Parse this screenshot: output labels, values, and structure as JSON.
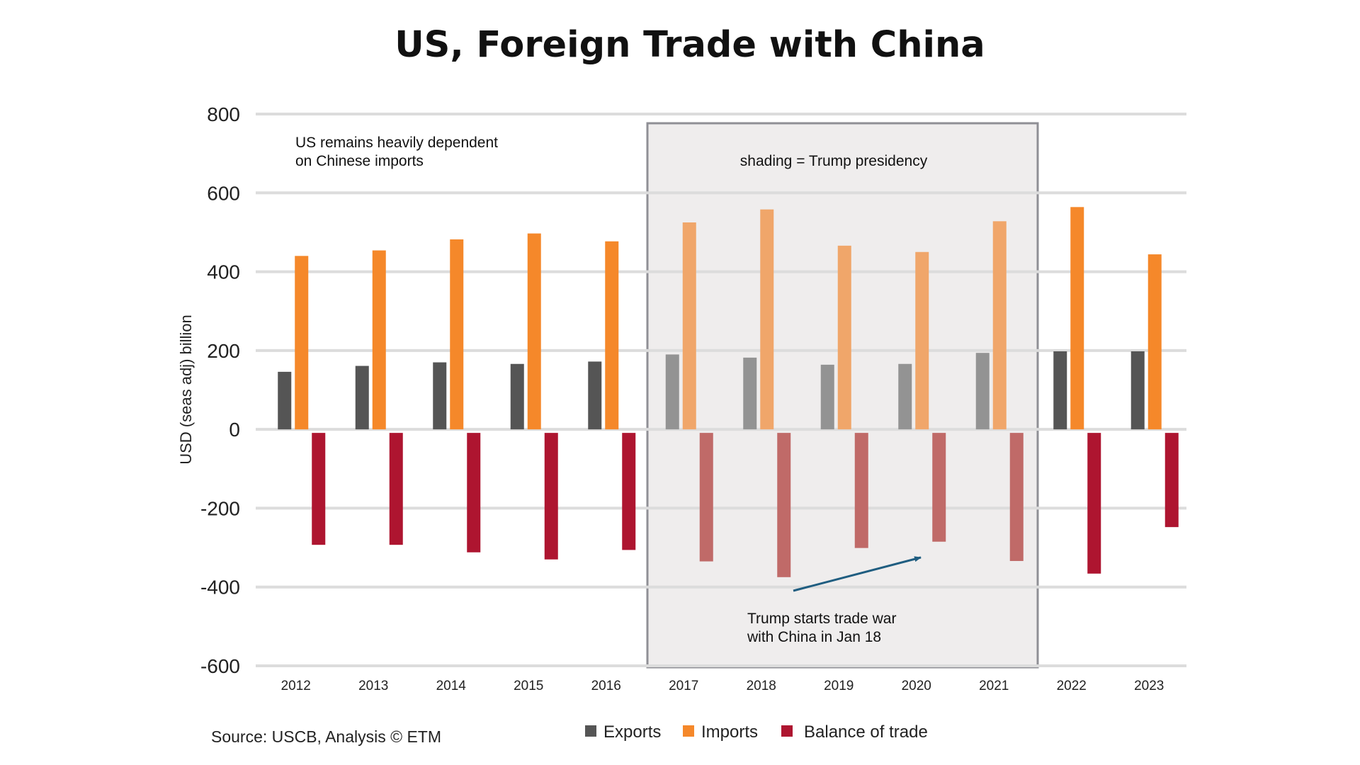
{
  "chart_data": {
    "type": "bar",
    "title": "US, Foreign Trade with China",
    "xlabel": "",
    "ylabel": "USD (seas adj) billion",
    "ylim": [
      -600,
      800
    ],
    "yticks": [
      800,
      600,
      400,
      200,
      0,
      -200,
      -400,
      -600
    ],
    "grid": true,
    "categories": [
      "2012",
      "2013",
      "2014",
      "2015",
      "2016",
      "2017",
      "2018",
      "2019",
      "2020",
      "2021",
      "2022",
      "2023"
    ],
    "series": [
      {
        "name": "Exports",
        "color": "#555555",
        "shaded_color": "#939393",
        "values": [
          146,
          161,
          170,
          166,
          172,
          190,
          182,
          164,
          166,
          194,
          198,
          198
        ]
      },
      {
        "name": "Imports",
        "color": "#f5882a",
        "shaded_color": "#f0a66a",
        "values": [
          440,
          454,
          482,
          497,
          477,
          525,
          558,
          466,
          450,
          528,
          564,
          444
        ]
      },
      {
        "name": "Balance of trade",
        "color": "#ae1530",
        "shaded_color": "#c06a68",
        "values": [
          -293,
          -293,
          -312,
          -330,
          -306,
          -335,
          -375,
          -301,
          -285,
          -334,
          -366,
          -248
        ]
      }
    ],
    "shading": {
      "label": "shading = Trump presidency",
      "from": "2017",
      "to": "2021"
    },
    "annotations": {
      "dependency": [
        "US remains heavily dependent",
        "on Chinese imports"
      ],
      "trade_war": [
        "Trump starts trade war",
        "with China in Jan 18"
      ]
    },
    "legend_position": "bottom-center",
    "source": "Source: USCB, Analysis © ETM"
  }
}
